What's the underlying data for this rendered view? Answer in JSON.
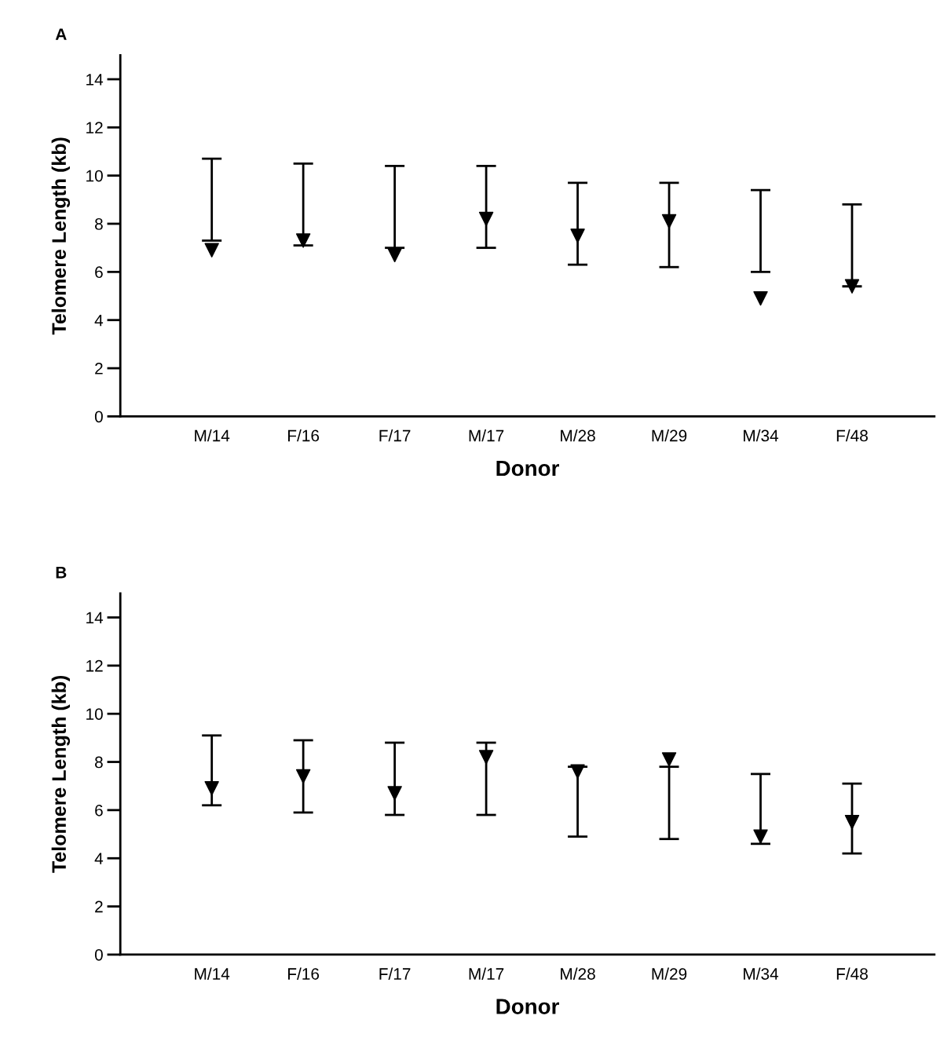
{
  "chart_data": [
    {
      "type": "scatter",
      "title": "A",
      "xlabel": "Donor",
      "ylabel": "Telomere Length (kb)",
      "categories": [
        "M/14",
        "F/16",
        "F/17",
        "M/17",
        "M/28",
        "M/29",
        "M/34",
        "F/48"
      ],
      "marker": "triangle",
      "ylim": [
        0,
        15
      ],
      "yticks": [
        0,
        2,
        4,
        6,
        8,
        10,
        12,
        14
      ],
      "grid": false,
      "legend": false,
      "series": [
        {
          "color": "#000000",
          "values": [
            6.9,
            7.3,
            6.7,
            8.2,
            7.5,
            8.1,
            4.9,
            5.4
          ],
          "errors": [
            [
              7.3,
              10.7
            ],
            [
              7.1,
              10.5
            ],
            [
              7.0,
              10.4
            ],
            [
              7.0,
              10.4
            ],
            [
              6.3,
              9.7
            ],
            [
              6.2,
              9.7
            ],
            [
              6.0,
              9.4
            ],
            [
              5.4,
              8.8
            ]
          ]
        }
      ]
    },
    {
      "type": "scatter",
      "title": "B",
      "xlabel": "Donor",
      "ylabel": "Telomere Length (kb)",
      "categories": [
        "M/14",
        "F/16",
        "F/17",
        "M/17",
        "M/28",
        "M/29",
        "M/34",
        "F/48"
      ],
      "marker": "triangle",
      "ylim": [
        0,
        15
      ],
      "yticks": [
        0,
        2,
        4,
        6,
        8,
        10,
        12,
        14
      ],
      "grid": false,
      "legend": false,
      "series": [
        {
          "color": "#000000",
          "values": [
            6.9,
            7.4,
            6.7,
            8.2,
            7.6,
            8.1,
            4.9,
            5.5
          ],
          "errors": [
            [
              6.2,
              9.1
            ],
            [
              5.9,
              8.9
            ],
            [
              5.8,
              8.8
            ],
            [
              5.8,
              8.8
            ],
            [
              4.9,
              7.8
            ],
            [
              4.8,
              7.8
            ],
            [
              4.6,
              7.5
            ],
            [
              4.2,
              7.1
            ]
          ]
        }
      ]
    }
  ]
}
